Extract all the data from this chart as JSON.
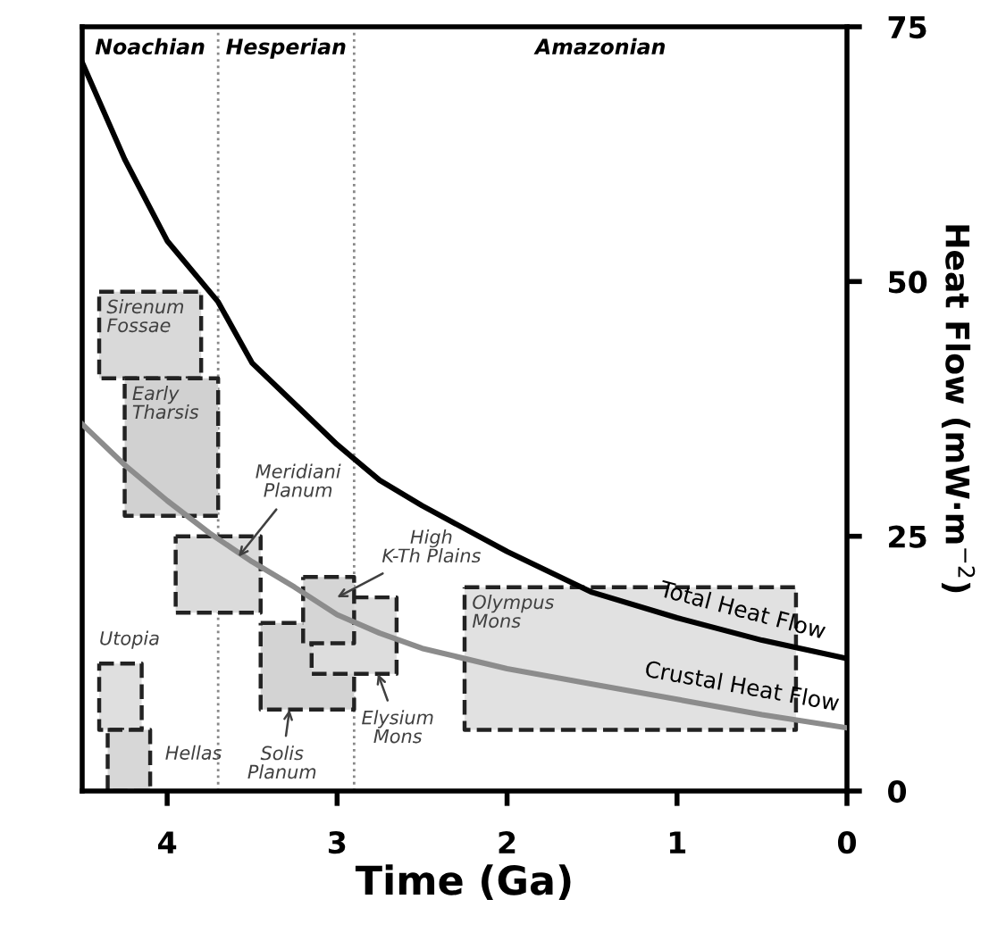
{
  "chart_data": {
    "type": "line",
    "xlabel": "Time (Ga)",
    "ylabel": "Heat Flow (mW·m$^{−2}$)",
    "xlim": [
      4.5,
      0
    ],
    "xticks": [
      4,
      3,
      2,
      1,
      0
    ],
    "ylim": [
      0,
      75
    ],
    "yticks": [
      0,
      25,
      50,
      75
    ],
    "grid": false,
    "legend": false,
    "marker": "none",
    "line_style": "solid",
    "series": [
      {
        "name": "Total Heat Flow",
        "color": "#000000",
        "x": [
          4.5,
          4.25,
          4.0,
          3.7,
          3.5,
          3.25,
          3.0,
          2.75,
          2.5,
          2.0,
          1.5,
          1.0,
          0.5,
          0
        ],
        "values": [
          71.5,
          62,
          54,
          48,
          42,
          38,
          34,
          30.5,
          28,
          23.5,
          19.5,
          17,
          14.8,
          13
        ]
      },
      {
        "name": "Crustal Heat Flow",
        "color": "#8c8c8c",
        "x": [
          4.5,
          4.25,
          4.0,
          3.75,
          3.5,
          3.25,
          3.0,
          2.75,
          2.5,
          2.0,
          1.5,
          1.0,
          0.5,
          0
        ],
        "values": [
          36,
          32,
          28.5,
          25.3,
          22.5,
          20,
          17.3,
          15.5,
          14,
          12,
          10.5,
          9,
          7.5,
          6.2
        ]
      },
      {
        "type": "area",
        "color": "#d9d9d9",
        "x": [
          4.4,
          3.8
        ],
        "values": [
          null,
          null
        ],
        "lower": [
          40.5,
          40.5
        ],
        "upper": [
          49,
          49
        ]
      },
      {
        "type": "area",
        "color": "#d1d1d1",
        "x": [
          4.25,
          3.7
        ],
        "values": [
          null,
          null
        ],
        "lower": [
          27,
          27
        ],
        "upper": [
          40.5,
          40.5
        ]
      },
      {
        "type": "area",
        "color": "#dbdbdb",
        "x": [
          3.95,
          3.45
        ],
        "values": [
          null,
          null
        ],
        "lower": [
          17.5,
          17.5
        ],
        "upper": [
          25,
          25
        ]
      },
      {
        "type": "area",
        "color": "#d3d3d3",
        "x": [
          3.45,
          2.9
        ],
        "values": [
          null,
          null
        ],
        "lower": [
          8,
          8
        ],
        "upper": [
          16.5,
          16.5
        ]
      },
      {
        "type": "area",
        "color": "#dddddd",
        "x": [
          3.15,
          2.65
        ],
        "values": [
          null,
          null
        ],
        "lower": [
          11.5,
          11.5
        ],
        "upper": [
          19,
          19
        ]
      },
      {
        "type": "area",
        "color": "#d5d5d5",
        "x": [
          3.2,
          2.9
        ],
        "values": [
          null,
          null
        ],
        "lower": [
          14.5,
          14.5
        ],
        "upper": [
          21,
          21
        ]
      },
      {
        "type": "area",
        "color": "#dfdfdf",
        "x": [
          4.4,
          4.15
        ],
        "values": [
          null,
          null
        ],
        "lower": [
          6,
          6
        ],
        "upper": [
          12.5,
          12.5
        ]
      },
      {
        "type": "area",
        "color": "#d7d7d7",
        "x": [
          4.35,
          4.1
        ],
        "values": [
          null,
          null
        ],
        "lower": [
          0,
          0
        ],
        "upper": [
          6,
          6
        ]
      },
      {
        "type": "area",
        "color": "#e1e1e1",
        "x": [
          2.25,
          0.3
        ],
        "values": [
          null,
          null
        ],
        "lower": [
          6,
          6
        ],
        "upper": [
          20,
          20
        ]
      }
    ],
    "ref_lines": [
      {
        "axis": "x",
        "value": 3.7,
        "color": "#888888",
        "line_style": "dotted"
      },
      {
        "axis": "x",
        "value": 2.9,
        "color": "#888888",
        "line_style": "dotted"
      }
    ],
    "annotations": [
      "Noachian",
      "Hesperian",
      "Amazonian",
      "Sirenum\nFossae",
      "Early\nTharsis",
      {
        "text": "Meridiani\nPlanum",
        "x": 3.58,
        "y": 23
      },
      {
        "text": "Solis\nPlanum",
        "x": 3.28,
        "y": 8
      },
      {
        "text": "Elysium\nMons",
        "x": 2.76,
        "y": 11.5
      },
      {
        "text": "High\nK-Th Plains",
        "x": 3.0,
        "y": 19
      },
      "Utopia",
      "Hellas",
      "Olympus\nMons"
    ]
  }
}
